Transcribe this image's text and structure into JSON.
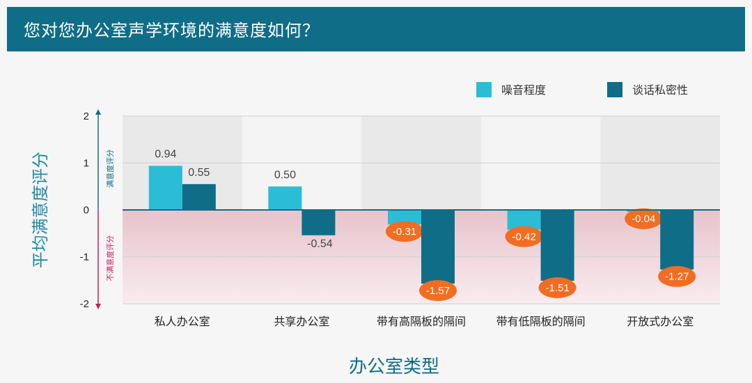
{
  "header": {
    "title": "您对您办公室声学环境的满意度如何？"
  },
  "chart_data": {
    "type": "bar",
    "title": "您对您办公室声学环境的满意度如何？",
    "xlabel": "办公室类型",
    "ylabel": "平均满意度评分",
    "ylim": [
      -2,
      2
    ],
    "yticks": [
      "2",
      "1",
      "0",
      "-1",
      "-2"
    ],
    "positive_band_label": "满意度评分",
    "negative_band_label": "不满意度评分",
    "categories": [
      "私人办公室",
      "共享办公室",
      "带有高隔板的隔间",
      "带有低隔板的隔间",
      "开放式办公室"
    ],
    "series": [
      {
        "name": "噪音程度",
        "color": "#2bbcd6",
        "values": [
          0.94,
          0.5,
          -0.31,
          -0.42,
          -0.04
        ],
        "labels": [
          "0.94",
          "0.50",
          "-0.31",
          "-0.42",
          "-0.04"
        ]
      },
      {
        "name": "谈话私密性",
        "color": "#0f6d87",
        "values": [
          0.55,
          -0.54,
          -1.57,
          -1.51,
          -1.27
        ],
        "labels": [
          "0.55",
          "-0.54",
          "-1.57",
          "-1.51",
          "-1.27"
        ]
      }
    ],
    "highlight_color": "#f26d21",
    "legend_position": "top-right",
    "grid": true
  }
}
